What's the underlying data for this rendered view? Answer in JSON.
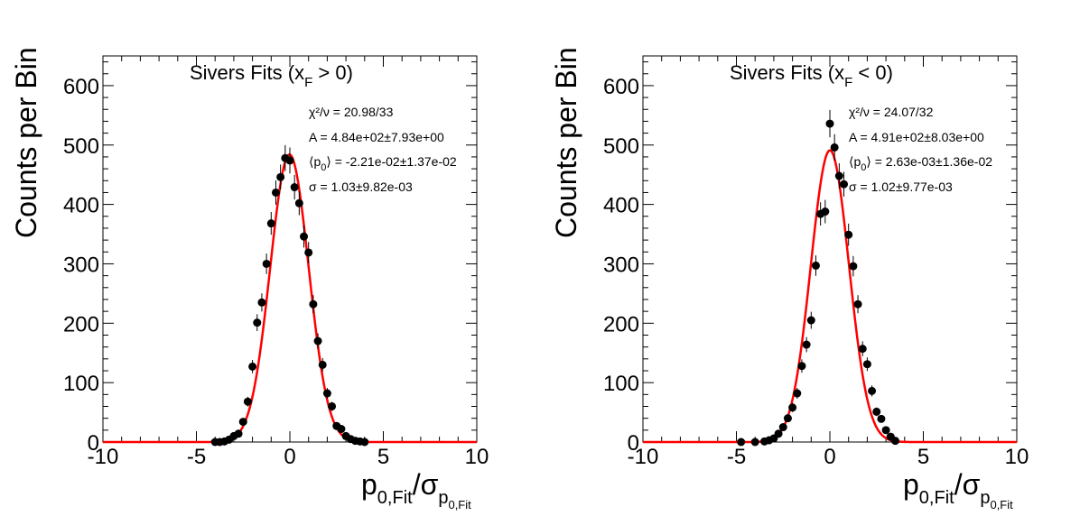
{
  "chart_data": [
    {
      "type": "scatter",
      "title": "Sivers Fits (x",
      "title_sub": "F",
      "title_tail": " > 0)",
      "ylabel": "Counts per Bin",
      "xlabel": {
        "base": "p",
        "sub": "0,Fit",
        "slash": "/σ",
        "sub2": "p",
        "sub3": "0,Fit"
      },
      "xlim": [
        -10,
        10
      ],
      "ylim": [
        0,
        650
      ],
      "xticks": [
        "-10",
        "-5",
        "0",
        "5",
        "10"
      ],
      "yticks": [
        "0",
        "100",
        "200",
        "300",
        "400",
        "500",
        "600"
      ],
      "stats": {
        "chi2": "χ²/ν = 20.98/33",
        "A": "A = 4.84e+02±7.93e+00",
        "p0": "⟨p",
        "p0_sub": "0",
        "p0_tail": "⟩ = -2.21e-02±1.37e-02",
        "sigma": "σ = 1.03±9.82e-03"
      },
      "fit": {
        "A": 484,
        "mu": -0.0221,
        "sigma": 1.03,
        "color": "#ff0000"
      },
      "points": {
        "x": [
          -4.0,
          -3.75,
          -3.5,
          -3.25,
          -3.0,
          -2.75,
          -2.5,
          -2.25,
          -2.0,
          -1.75,
          -1.5,
          -1.25,
          -1.0,
          -0.75,
          -0.5,
          -0.25,
          0.0,
          0.25,
          0.5,
          0.75,
          1.0,
          1.25,
          1.5,
          1.75,
          2.0,
          2.25,
          2.5,
          2.75,
          3.0,
          3.25,
          3.5,
          3.75,
          4.0
        ],
        "y": [
          0,
          0,
          1,
          4,
          10,
          14,
          34,
          68,
          127,
          201,
          235,
          300,
          368,
          420,
          446,
          478,
          474,
          429,
          402,
          346,
          319,
          232,
          170,
          130,
          82,
          60,
          27,
          22,
          10,
          5,
          2,
          1,
          0
        ],
        "color": "#000000"
      }
    },
    {
      "type": "scatter",
      "title": "Sivers Fits (x",
      "title_sub": "F",
      "title_tail": " < 0)",
      "ylabel": "Counts per Bin",
      "xlabel": {
        "base": "p",
        "sub": "0,Fit",
        "slash": "/σ",
        "sub2": "p",
        "sub3": "0,Fit"
      },
      "xlim": [
        -10,
        10
      ],
      "ylim": [
        0,
        650
      ],
      "xticks": [
        "-10",
        "-5",
        "0",
        "5",
        "10"
      ],
      "yticks": [
        "0",
        "100",
        "200",
        "300",
        "400",
        "500",
        "600"
      ],
      "stats": {
        "chi2": "χ²/ν = 24.07/32",
        "A": "A = 4.91e+02±8.03e+00",
        "p0": "⟨p",
        "p0_sub": "0",
        "p0_tail": "⟩ = 2.63e-03±1.36e-02",
        "sigma": "σ = 1.02±9.77e-03"
      },
      "fit": {
        "A": 491,
        "mu": 0.00263,
        "sigma": 1.02,
        "color": "#ff0000"
      },
      "points": {
        "x": [
          -4.75,
          -4.0,
          -3.5,
          -3.25,
          -3.0,
          -2.75,
          -2.5,
          -2.25,
          -2.0,
          -1.75,
          -1.5,
          -1.25,
          -1.0,
          -0.75,
          -0.5,
          -0.25,
          0.0,
          0.25,
          0.5,
          0.75,
          1.0,
          1.25,
          1.5,
          1.75,
          2.0,
          2.25,
          2.5,
          2.75,
          3.0,
          3.25,
          3.5
        ],
        "y": [
          0,
          0,
          1,
          3,
          6,
          14,
          25,
          40,
          58,
          82,
          128,
          164,
          205,
          297,
          384,
          388,
          536,
          496,
          448,
          434,
          349,
          296,
          232,
          157,
          131,
          86,
          51,
          39,
          20,
          9,
          2
        ],
        "color": "#000000"
      }
    }
  ]
}
